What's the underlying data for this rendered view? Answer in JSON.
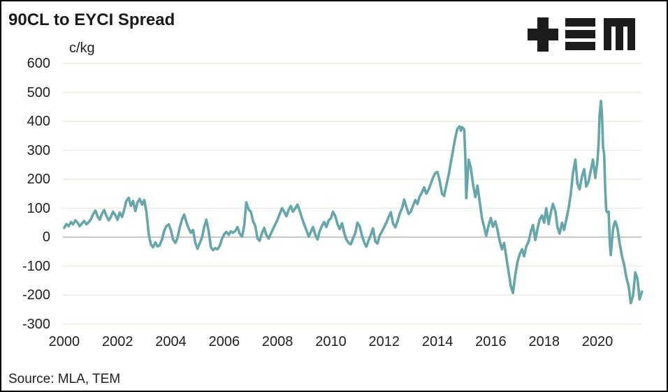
{
  "header": {
    "title": "90CL to EYCI Spread"
  },
  "logo": {
    "brand": "TEM",
    "color": "#1c1c1c"
  },
  "footer": {
    "source": "Source: MLA, TEM"
  },
  "chart_data": {
    "type": "line",
    "title": "90CL to EYCI Spread",
    "unit_label": "c/kg",
    "source": "Source: MLA, TEM",
    "grid": "horizontal",
    "legend": "none",
    "gridline_color": "#e8e8dc",
    "zero_line_color": "#b5b5b5",
    "x_ticks": [
      2000,
      2002,
      2004,
      2006,
      2008,
      2010,
      2012,
      2014,
      2016,
      2018,
      2020
    ],
    "y_ticks": [
      600,
      500,
      400,
      300,
      200,
      100,
      0,
      -100,
      -200,
      -300
    ],
    "xlim": [
      1999.95,
      2021.65
    ],
    "ylim": [
      -300,
      600
    ],
    "series": [
      {
        "name": "90CL to EYCI spread (c/kg)",
        "color": "#64a6a9",
        "points": [
          [
            2000.0,
            32
          ],
          [
            2000.08,
            45
          ],
          [
            2000.17,
            38
          ],
          [
            2000.25,
            52
          ],
          [
            2000.33,
            44
          ],
          [
            2000.42,
            58
          ],
          [
            2000.5,
            50
          ],
          [
            2000.58,
            38
          ],
          [
            2000.67,
            48
          ],
          [
            2000.75,
            56
          ],
          [
            2000.83,
            44
          ],
          [
            2000.92,
            52
          ],
          [
            2001.0,
            62
          ],
          [
            2001.08,
            78
          ],
          [
            2001.17,
            92
          ],
          [
            2001.25,
            72
          ],
          [
            2001.33,
            60
          ],
          [
            2001.42,
            82
          ],
          [
            2001.5,
            94
          ],
          [
            2001.58,
            74
          ],
          [
            2001.67,
            58
          ],
          [
            2001.75,
            70
          ],
          [
            2001.83,
            88
          ],
          [
            2001.92,
            76
          ],
          [
            2002.0,
            60
          ],
          [
            2002.08,
            85
          ],
          [
            2002.17,
            70
          ],
          [
            2002.25,
            95
          ],
          [
            2002.33,
            125
          ],
          [
            2002.42,
            136
          ],
          [
            2002.5,
            108
          ],
          [
            2002.58,
            125
          ],
          [
            2002.67,
            90
          ],
          [
            2002.75,
            120
          ],
          [
            2002.83,
            132
          ],
          [
            2002.92,
            112
          ],
          [
            2003.0,
            128
          ],
          [
            2003.08,
            90
          ],
          [
            2003.17,
            10
          ],
          [
            2003.25,
            -25
          ],
          [
            2003.33,
            -35
          ],
          [
            2003.42,
            -18
          ],
          [
            2003.5,
            -32
          ],
          [
            2003.58,
            -28
          ],
          [
            2003.67,
            -8
          ],
          [
            2003.75,
            22
          ],
          [
            2003.83,
            38
          ],
          [
            2003.92,
            44
          ],
          [
            2004.0,
            25
          ],
          [
            2004.08,
            -8
          ],
          [
            2004.17,
            -20
          ],
          [
            2004.25,
            -2
          ],
          [
            2004.33,
            32
          ],
          [
            2004.42,
            62
          ],
          [
            2004.5,
            78
          ],
          [
            2004.58,
            52
          ],
          [
            2004.67,
            30
          ],
          [
            2004.75,
            15
          ],
          [
            2004.83,
            25
          ],
          [
            2004.92,
            -20
          ],
          [
            2005.0,
            -40
          ],
          [
            2005.08,
            -22
          ],
          [
            2005.17,
            0
          ],
          [
            2005.25,
            35
          ],
          [
            2005.33,
            60
          ],
          [
            2005.42,
            20
          ],
          [
            2005.5,
            -35
          ],
          [
            2005.58,
            -45
          ],
          [
            2005.67,
            -38
          ],
          [
            2005.75,
            -42
          ],
          [
            2005.83,
            -30
          ],
          [
            2005.92,
            -5
          ],
          [
            2006.0,
            10
          ],
          [
            2006.08,
            18
          ],
          [
            2006.17,
            8
          ],
          [
            2006.25,
            20
          ],
          [
            2006.33,
            15
          ],
          [
            2006.42,
            22
          ],
          [
            2006.5,
            35
          ],
          [
            2006.58,
            12
          ],
          [
            2006.67,
            2
          ],
          [
            2006.75,
            40
          ],
          [
            2006.83,
            120
          ],
          [
            2006.92,
            95
          ],
          [
            2007.0,
            88
          ],
          [
            2007.08,
            55
          ],
          [
            2007.17,
            38
          ],
          [
            2007.25,
            -5
          ],
          [
            2007.33,
            -12
          ],
          [
            2007.42,
            15
          ],
          [
            2007.5,
            32
          ],
          [
            2007.58,
            8
          ],
          [
            2007.67,
            -5
          ],
          [
            2007.75,
            12
          ],
          [
            2007.83,
            28
          ],
          [
            2007.92,
            45
          ],
          [
            2008.0,
            60
          ],
          [
            2008.08,
            80
          ],
          [
            2008.17,
            100
          ],
          [
            2008.25,
            88
          ],
          [
            2008.33,
            72
          ],
          [
            2008.42,
            95
          ],
          [
            2008.5,
            108
          ],
          [
            2008.58,
            88
          ],
          [
            2008.67,
            100
          ],
          [
            2008.75,
            112
          ],
          [
            2008.83,
            92
          ],
          [
            2008.92,
            65
          ],
          [
            2009.0,
            45
          ],
          [
            2009.08,
            25
          ],
          [
            2009.17,
            2
          ],
          [
            2009.25,
            18
          ],
          [
            2009.33,
            35
          ],
          [
            2009.42,
            8
          ],
          [
            2009.5,
            -8
          ],
          [
            2009.58,
            20
          ],
          [
            2009.67,
            40
          ],
          [
            2009.75,
            52
          ],
          [
            2009.83,
            35
          ],
          [
            2009.92,
            58
          ],
          [
            2010.0,
            65
          ],
          [
            2010.08,
            88
          ],
          [
            2010.17,
            72
          ],
          [
            2010.25,
            45
          ],
          [
            2010.33,
            28
          ],
          [
            2010.42,
            48
          ],
          [
            2010.5,
            15
          ],
          [
            2010.58,
            -8
          ],
          [
            2010.67,
            -20
          ],
          [
            2010.75,
            -25
          ],
          [
            2010.83,
            -5
          ],
          [
            2010.92,
            15
          ],
          [
            2011.0,
            50
          ],
          [
            2011.08,
            38
          ],
          [
            2011.17,
            5
          ],
          [
            2011.25,
            -18
          ],
          [
            2011.33,
            -33
          ],
          [
            2011.42,
            -10
          ],
          [
            2011.5,
            8
          ],
          [
            2011.58,
            30
          ],
          [
            2011.67,
            -15
          ],
          [
            2011.75,
            -22
          ],
          [
            2011.83,
            5
          ],
          [
            2011.92,
            20
          ],
          [
            2012.0,
            35
          ],
          [
            2012.08,
            50
          ],
          [
            2012.17,
            70
          ],
          [
            2012.25,
            86
          ],
          [
            2012.33,
            48
          ],
          [
            2012.42,
            34
          ],
          [
            2012.5,
            55
          ],
          [
            2012.58,
            80
          ],
          [
            2012.67,
            100
          ],
          [
            2012.75,
            130
          ],
          [
            2012.83,
            105
          ],
          [
            2012.92,
            80
          ],
          [
            2013.0,
            88
          ],
          [
            2013.08,
            108
          ],
          [
            2013.17,
            128
          ],
          [
            2013.25,
            115
          ],
          [
            2013.33,
            140
          ],
          [
            2013.42,
            155
          ],
          [
            2013.5,
            172
          ],
          [
            2013.58,
            150
          ],
          [
            2013.67,
            165
          ],
          [
            2013.75,
            185
          ],
          [
            2013.83,
            205
          ],
          [
            2013.92,
            222
          ],
          [
            2014.0,
            225
          ],
          [
            2014.08,
            195
          ],
          [
            2014.17,
            150
          ],
          [
            2014.25,
            142
          ],
          [
            2014.33,
            178
          ],
          [
            2014.42,
            215
          ],
          [
            2014.5,
            258
          ],
          [
            2014.58,
            298
          ],
          [
            2014.67,
            345
          ],
          [
            2014.75,
            375
          ],
          [
            2014.83,
            383
          ],
          [
            2014.88,
            368
          ],
          [
            2014.92,
            380
          ],
          [
            2015.0,
            372
          ],
          [
            2015.04,
            290
          ],
          [
            2015.08,
            135
          ],
          [
            2015.17,
            268
          ],
          [
            2015.25,
            240
          ],
          [
            2015.33,
            185
          ],
          [
            2015.42,
            138
          ],
          [
            2015.5,
            178
          ],
          [
            2015.58,
            125
          ],
          [
            2015.67,
            65
          ],
          [
            2015.75,
            35
          ],
          [
            2015.83,
            5
          ],
          [
            2015.92,
            42
          ],
          [
            2016.0,
            66
          ],
          [
            2016.08,
            36
          ],
          [
            2016.17,
            55
          ],
          [
            2016.25,
            25
          ],
          [
            2016.33,
            -12
          ],
          [
            2016.42,
            -42
          ],
          [
            2016.5,
            -20
          ],
          [
            2016.58,
            -68
          ],
          [
            2016.67,
            -122
          ],
          [
            2016.75,
            -168
          ],
          [
            2016.83,
            -193
          ],
          [
            2016.92,
            -130
          ],
          [
            2017.0,
            -85
          ],
          [
            2017.08,
            -60
          ],
          [
            2017.17,
            -42
          ],
          [
            2017.25,
            -66
          ],
          [
            2017.33,
            -32
          ],
          [
            2017.42,
            -15
          ],
          [
            2017.5,
            18
          ],
          [
            2017.58,
            42
          ],
          [
            2017.67,
            -10
          ],
          [
            2017.75,
            28
          ],
          [
            2017.83,
            60
          ],
          [
            2017.92,
            75
          ],
          [
            2018.0,
            50
          ],
          [
            2018.08,
            100
          ],
          [
            2018.17,
            45
          ],
          [
            2018.25,
            85
          ],
          [
            2018.33,
            115
          ],
          [
            2018.42,
            90
          ],
          [
            2018.5,
            35
          ],
          [
            2018.58,
            12
          ],
          [
            2018.67,
            50
          ],
          [
            2018.75,
            25
          ],
          [
            2018.83,
            60
          ],
          [
            2018.92,
            100
          ],
          [
            2019.0,
            150
          ],
          [
            2019.08,
            220
          ],
          [
            2019.17,
            268
          ],
          [
            2019.25,
            185
          ],
          [
            2019.33,
            165
          ],
          [
            2019.42,
            210
          ],
          [
            2019.5,
            235
          ],
          [
            2019.58,
            175
          ],
          [
            2019.67,
            192
          ],
          [
            2019.75,
            230
          ],
          [
            2019.83,
            268
          ],
          [
            2019.92,
            205
          ],
          [
            2020.0,
            262
          ],
          [
            2020.04,
            320
          ],
          [
            2020.08,
            420
          ],
          [
            2020.13,
            470
          ],
          [
            2020.17,
            425
          ],
          [
            2020.21,
            310
          ],
          [
            2020.25,
            288
          ],
          [
            2020.29,
            170
          ],
          [
            2020.33,
            92
          ],
          [
            2020.38,
            85
          ],
          [
            2020.42,
            88
          ],
          [
            2020.46,
            -15
          ],
          [
            2020.5,
            -62
          ],
          [
            2020.54,
            -20
          ],
          [
            2020.58,
            25
          ],
          [
            2020.63,
            48
          ],
          [
            2020.67,
            55
          ],
          [
            2020.75,
            30
          ],
          [
            2020.83,
            -20
          ],
          [
            2020.92,
            -65
          ],
          [
            2021.0,
            -95
          ],
          [
            2021.08,
            -138
          ],
          [
            2021.17,
            -170
          ],
          [
            2021.25,
            -228
          ],
          [
            2021.33,
            -205
          ],
          [
            2021.38,
            -160
          ],
          [
            2021.42,
            -122
          ],
          [
            2021.5,
            -145
          ],
          [
            2021.58,
            -215
          ],
          [
            2021.63,
            -200
          ],
          [
            2021.67,
            -188
          ]
        ]
      }
    ]
  }
}
